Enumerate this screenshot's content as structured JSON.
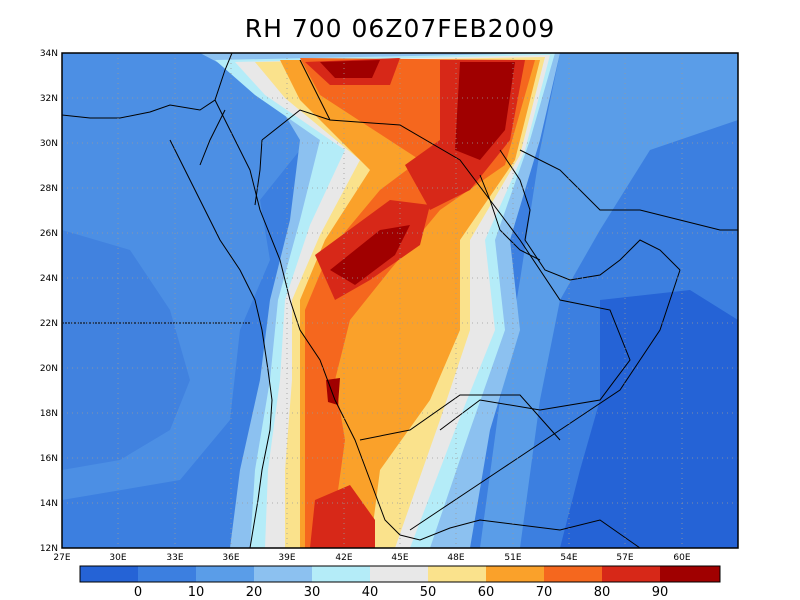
{
  "title": "RH 700 06Z07FEB2009",
  "map": {
    "lat_labels": [
      "34N",
      "32N",
      "30N",
      "28N",
      "26N",
      "24N",
      "22N",
      "20N",
      "18N",
      "16N",
      "14N",
      "12N"
    ],
    "lon_labels": [
      "27E",
      "30E",
      "33E",
      "36E",
      "39E",
      "42E",
      "45E",
      "48E",
      "51E",
      "54E",
      "57E",
      "60E"
    ],
    "lat_range": [
      12,
      34
    ],
    "lon_range": [
      27,
      63
    ],
    "grid": "dotted"
  },
  "colorbar": {
    "labels": [
      "0",
      "10",
      "20",
      "30",
      "40",
      "50",
      "60",
      "70",
      "80",
      "90"
    ],
    "colors": [
      "#2563d6",
      "#3c7fe0",
      "#5a9de8",
      "#8cc1f0",
      "#b4ecf8",
      "#e8e8e8",
      "#fae28c",
      "#faa12a",
      "#f5671e",
      "#d72818",
      "#a00000"
    ]
  },
  "field_colors": {
    "c_low": "#2563d6",
    "c10": "#3c7fe0",
    "c20": "#5a9de8",
    "c30": "#8cc1f0",
    "c40": "#b4ecf8",
    "c50": "#e8e8e8",
    "c60": "#fae28c",
    "c70": "#faa12a",
    "c80": "#f5671e",
    "c90": "#d72818",
    "c_high": "#a00000"
  }
}
